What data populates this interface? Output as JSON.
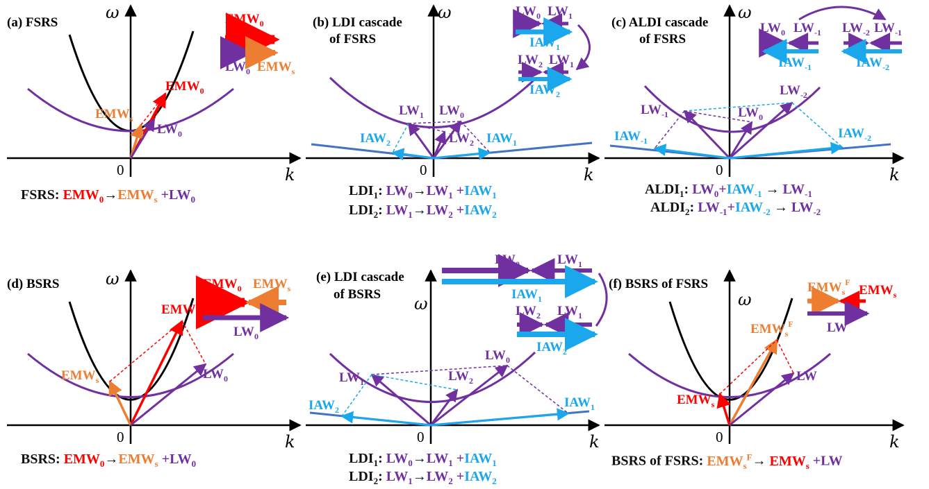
{
  "colors": {
    "purple": "#7030a0",
    "red": "#ff0000",
    "orange": "#ed7d31",
    "blue": "#1aa7ec",
    "black": "#000000",
    "steel": "#4472c4"
  },
  "axes": {
    "omega": "ω",
    "k": "k",
    "origin": "0"
  },
  "panels": {
    "a": {
      "title": "(a) FSRS",
      "caption": [
        "FSRS:",
        "EMW0",
        "→",
        "EMWs",
        "+LW0"
      ]
    },
    "b": {
      "title_l1": "(b) LDI cascade",
      "title_l2": "of FSRS",
      "cap1": [
        "LDI1:",
        "LW0",
        "→",
        "LW1",
        "+",
        "IAW1"
      ],
      "cap2": [
        "LDI2:",
        "LW1",
        "→",
        "LW2",
        "+",
        "IAW2"
      ]
    },
    "c": {
      "title_l1": "(c) ALDI cascade",
      "title_l2": "of FSRS",
      "cap1": [
        "ALDI1:",
        "LW0",
        "+",
        "IAW-1",
        "→",
        "LW-1"
      ],
      "cap2": [
        "ALDI2:",
        "LW-1",
        "+",
        "IAW-2",
        "→",
        "LW-2"
      ]
    },
    "d": {
      "title": "(d) BSRS",
      "caption": [
        "BSRS:",
        "EMW0",
        "→",
        "EMWs",
        "+LW0"
      ]
    },
    "e": {
      "title_l1": "(e) LDI cascade",
      "title_l2": "of BSRS",
      "cap1": [
        "LDI1:",
        "LW0",
        "→",
        "LW1",
        "+",
        "IAW1"
      ],
      "cap2": [
        "LDI2:",
        "LW1",
        "→",
        "LW2",
        "+",
        "IAW2"
      ]
    },
    "f": {
      "title": "(f) BSRS of FSRS",
      "caption": [
        "BSRS of FSRS:",
        "EMWsF",
        "→",
        "EMWs",
        "+LW"
      ]
    }
  }
}
